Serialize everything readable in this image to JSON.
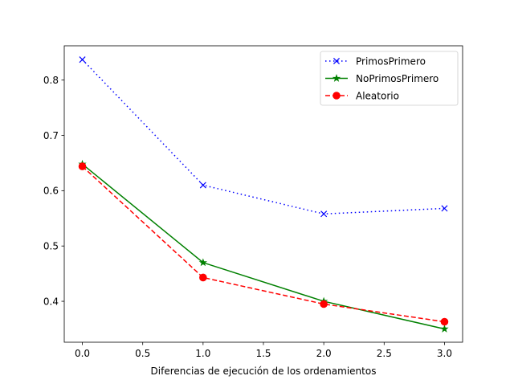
{
  "chart_data": {
    "type": "line",
    "title": "",
    "xlabel": "Diferencias de ejecución de los ordenamientos",
    "ylabel": "",
    "xlim": [
      -0.15,
      3.15
    ],
    "ylim": [
      0.326,
      0.862
    ],
    "xticks": [
      0.0,
      0.5,
      1.0,
      1.5,
      2.0,
      2.5,
      3.0
    ],
    "xtick_labels": [
      "0.0",
      "0.5",
      "1.0",
      "1.5",
      "2.0",
      "2.5",
      "3.0"
    ],
    "yticks": [
      0.4,
      0.5,
      0.6,
      0.7,
      0.8
    ],
    "ytick_labels": [
      "0.4",
      "0.5",
      "0.6",
      "0.7",
      "0.8"
    ],
    "grid": false,
    "legend_position": "top-right",
    "x": [
      0,
      1,
      2,
      3
    ],
    "series": [
      {
        "name": "PrimosPrimero",
        "values": [
          0.837,
          0.61,
          0.558,
          0.568
        ],
        "color": "#0000ff",
        "line_style": "dotted",
        "marker": "x"
      },
      {
        "name": "NoPrimosPrimero",
        "values": [
          0.648,
          0.47,
          0.4,
          0.35
        ],
        "color": "#008000",
        "line_style": "solid",
        "marker": "star"
      },
      {
        "name": "Aleatorio",
        "values": [
          0.644,
          0.443,
          0.395,
          0.363
        ],
        "color": "#ff0000",
        "line_style": "dashed",
        "marker": "circle"
      }
    ]
  }
}
